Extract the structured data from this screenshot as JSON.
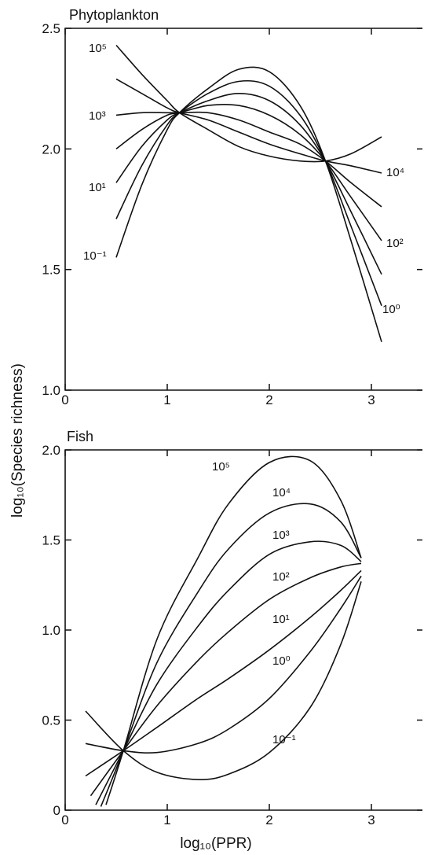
{
  "ylabel": "log₁₀(Species richness)",
  "xlabel": "log₁₀(PPR)",
  "chart_data": [
    {
      "type": "line",
      "title": "Phytoplankton",
      "xlim": [
        0,
        3.5
      ],
      "ylim": [
        1.0,
        2.5
      ],
      "xticks": [
        "0",
        "1",
        "2",
        "3"
      ],
      "yticks": [
        "1.0",
        "1.5",
        "2.0",
        "2.5"
      ],
      "series": [
        {
          "name": "10⁻¹",
          "x": [
            0.5,
            0.75,
            1.0,
            1.12,
            1.4,
            1.7,
            2.0,
            2.3,
            2.55,
            2.8,
            3.1
          ],
          "y": [
            1.55,
            1.85,
            2.08,
            2.15,
            2.25,
            2.33,
            2.32,
            2.18,
            1.95,
            1.62,
            1.2
          ]
        },
        {
          "name": "10⁰",
          "x": [
            0.5,
            0.75,
            1.0,
            1.12,
            1.4,
            1.7,
            2.0,
            2.3,
            2.55,
            2.8,
            3.1
          ],
          "y": [
            1.71,
            1.93,
            2.1,
            2.15,
            2.23,
            2.28,
            2.26,
            2.14,
            1.95,
            1.68,
            1.35
          ]
        },
        {
          "name": "10¹",
          "x": [
            0.5,
            0.75,
            1.0,
            1.12,
            1.4,
            1.7,
            2.0,
            2.3,
            2.55,
            2.8,
            3.1
          ],
          "y": [
            1.86,
            2.01,
            2.12,
            2.15,
            2.2,
            2.23,
            2.2,
            2.1,
            1.95,
            1.74,
            1.48
          ]
        },
        {
          "name": "10²",
          "x": [
            0.5,
            0.75,
            1.0,
            1.12,
            1.4,
            1.7,
            2.0,
            2.3,
            2.55,
            2.8,
            3.1
          ],
          "y": [
            2.0,
            2.08,
            2.14,
            2.15,
            2.18,
            2.18,
            2.14,
            2.06,
            1.95,
            1.8,
            1.62
          ]
        },
        {
          "name": "10³",
          "x": [
            0.5,
            0.75,
            1.0,
            1.12,
            1.4,
            1.7,
            2.0,
            2.3,
            2.55,
            2.8,
            3.1
          ],
          "y": [
            2.14,
            2.15,
            2.15,
            2.15,
            2.15,
            2.12,
            2.07,
            2.02,
            1.95,
            1.86,
            1.76
          ]
        },
        {
          "name": "10⁴",
          "x": [
            0.5,
            0.75,
            1.0,
            1.12,
            1.4,
            1.7,
            2.0,
            2.3,
            2.55,
            2.8,
            3.1
          ],
          "y": [
            2.29,
            2.23,
            2.17,
            2.15,
            2.12,
            2.07,
            2.02,
            1.98,
            1.95,
            1.93,
            1.9
          ]
        },
        {
          "name": "10⁵",
          "x": [
            0.5,
            0.75,
            1.0,
            1.12,
            1.4,
            1.7,
            2.0,
            2.3,
            2.55,
            2.8,
            3.1
          ],
          "y": [
            2.43,
            2.31,
            2.2,
            2.15,
            2.08,
            2.01,
            1.97,
            1.95,
            1.95,
            1.98,
            2.05
          ]
        }
      ]
    },
    {
      "type": "line",
      "title": "Fish",
      "xlim": [
        0,
        3.5
      ],
      "ylim": [
        0,
        2.0
      ],
      "xticks": [
        "0",
        "1",
        "2",
        "3"
      ],
      "yticks": [
        "0",
        "0.5",
        "1.0",
        "1.5",
        "2.0"
      ],
      "series": [
        {
          "name": "10⁻¹",
          "x": [
            0.2,
            0.57,
            0.9,
            1.3,
            1.6,
            2.0,
            2.4,
            2.7,
            2.9
          ],
          "y": [
            0.55,
            0.33,
            0.21,
            0.17,
            0.2,
            0.32,
            0.57,
            0.92,
            1.27
          ]
        },
        {
          "name": "10⁰",
          "x": [
            0.2,
            0.57,
            0.9,
            1.3,
            1.6,
            2.0,
            2.4,
            2.7,
            2.9
          ],
          "y": [
            0.37,
            0.33,
            0.32,
            0.37,
            0.45,
            0.62,
            0.88,
            1.12,
            1.3
          ]
        },
        {
          "name": "10¹",
          "x": [
            0.2,
            0.57,
            0.9,
            1.3,
            1.6,
            2.0,
            2.4,
            2.7,
            2.9
          ],
          "y": [
            0.19,
            0.33,
            0.46,
            0.62,
            0.73,
            0.89,
            1.07,
            1.22,
            1.33
          ]
        },
        {
          "name": "10²",
          "x": [
            0.25,
            0.57,
            0.9,
            1.3,
            1.6,
            2.0,
            2.4,
            2.7,
            2.9
          ],
          "y": [
            0.08,
            0.33,
            0.58,
            0.83,
            0.99,
            1.17,
            1.29,
            1.35,
            1.37
          ]
        },
        {
          "name": "10³",
          "x": [
            0.3,
            0.57,
            0.9,
            1.3,
            1.6,
            2.0,
            2.4,
            2.7,
            2.9
          ],
          "y": [
            0.03,
            0.33,
            0.7,
            1.02,
            1.22,
            1.42,
            1.49,
            1.47,
            1.38
          ]
        },
        {
          "name": "10⁴",
          "x": [
            0.35,
            0.57,
            0.9,
            1.3,
            1.6,
            2.0,
            2.4,
            2.7,
            2.9
          ],
          "y": [
            0.02,
            0.33,
            0.82,
            1.21,
            1.45,
            1.65,
            1.7,
            1.6,
            1.4
          ]
        },
        {
          "name": "10⁵",
          "x": [
            0.4,
            0.57,
            0.9,
            1.3,
            1.6,
            2.0,
            2.4,
            2.7,
            2.9
          ],
          "y": [
            0.03,
            0.33,
            0.95,
            1.4,
            1.7,
            1.93,
            1.94,
            1.72,
            1.4
          ]
        }
      ]
    }
  ]
}
